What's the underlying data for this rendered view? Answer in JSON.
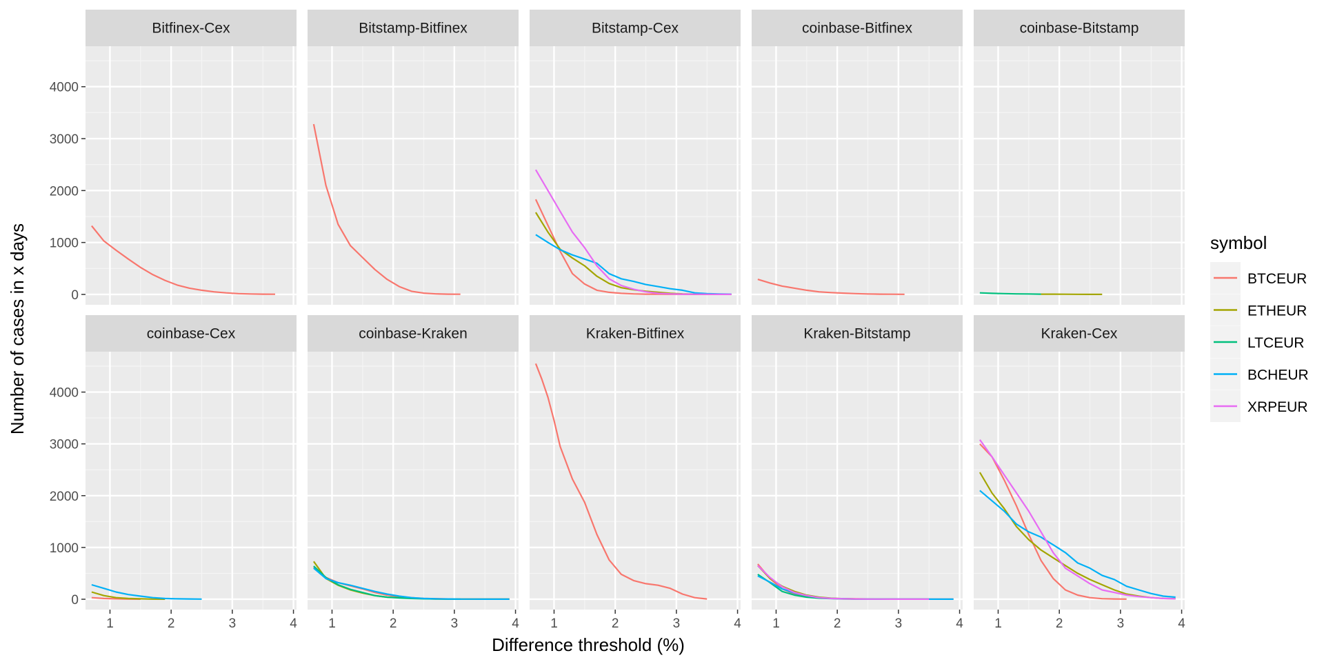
{
  "chart_data": {
    "type": "line",
    "xlabel": "Difference threshold (%)",
    "ylabel": "Number of cases in x days",
    "xlim": [
      0.6,
      4.05
    ],
    "ylim": [
      -200,
      4780
    ],
    "x_ticks": [
      1,
      2,
      3,
      4
    ],
    "y_ticks": [
      0,
      1000,
      2000,
      3000,
      4000
    ],
    "grid": true,
    "legend": {
      "title": "symbol",
      "position": "right",
      "entries": [
        {
          "label": "BTCEUR",
          "color": "#F8766D"
        },
        {
          "label": "ETHEUR",
          "color": "#A3A500"
        },
        {
          "label": "LTCEUR",
          "color": "#00BF7D"
        },
        {
          "label": "BCHEUR",
          "color": "#00B0F6"
        },
        {
          "label": "XRPEUR",
          "color": "#E76BF3"
        }
      ]
    },
    "panels": [
      {
        "title": "Bitfinex-Cex",
        "series": [
          {
            "name": "BTCEUR",
            "x": [
              0.7,
              0.9,
              1.1,
              1.3,
              1.5,
              1.7,
              1.9,
              2.1,
              2.3,
              2.5,
              2.7,
              2.9,
              3.1,
              3.3,
              3.5,
              3.7
            ],
            "y": [
              1320,
              1030,
              850,
              680,
              520,
              380,
              270,
              180,
              120,
              80,
              50,
              30,
              15,
              8,
              5,
              3
            ]
          }
        ]
      },
      {
        "title": "Bitstamp-Bitfinex",
        "series": [
          {
            "name": "BTCEUR",
            "x": [
              0.7,
              0.9,
              1.1,
              1.3,
              1.5,
              1.7,
              1.9,
              2.1,
              2.3,
              2.5,
              2.7,
              2.9,
              3.1
            ],
            "y": [
              3280,
              2100,
              1350,
              940,
              710,
              480,
              290,
              150,
              60,
              25,
              10,
              5,
              3
            ]
          }
        ]
      },
      {
        "title": "Bitstamp-Cex",
        "series": [
          {
            "name": "BTCEUR",
            "x": [
              0.7,
              0.9,
              1.1,
              1.3,
              1.5,
              1.7,
              1.9,
              2.1,
              2.3,
              2.5,
              2.7,
              2.9,
              3.1,
              3.3,
              3.5,
              3.7,
              3.9
            ],
            "y": [
              1830,
              1330,
              830,
              400,
              200,
              80,
              40,
              20,
              10,
              5,
              3,
              2,
              2,
              1,
              1,
              1,
              1
            ]
          },
          {
            "name": "ETHEUR",
            "x": [
              0.7,
              0.9,
              1.1,
              1.3,
              1.5,
              1.7,
              1.9,
              2.1,
              2.3,
              2.5,
              2.7,
              2.9,
              3.1,
              3.3,
              3.5,
              3.7,
              3.9
            ],
            "y": [
              1580,
              1200,
              870,
              700,
              550,
              350,
              210,
              130,
              90,
              60,
              40,
              20,
              10,
              5,
              3,
              2,
              1
            ]
          },
          {
            "name": "BCHEUR",
            "x": [
              0.7,
              0.9,
              1.1,
              1.3,
              1.5,
              1.7,
              1.9,
              2.1,
              2.3,
              2.5,
              2.7,
              2.9,
              3.1,
              3.3,
              3.5,
              3.7,
              3.9
            ],
            "y": [
              1150,
              1000,
              860,
              760,
              680,
              600,
              400,
              300,
              250,
              190,
              150,
              110,
              80,
              30,
              15,
              8,
              5
            ]
          },
          {
            "name": "XRPEUR",
            "x": [
              0.7,
              0.9,
              1.1,
              1.3,
              1.5,
              1.7,
              1.9,
              2.1,
              2.3,
              2.5,
              2.7,
              2.9,
              3.1,
              3.3,
              3.5,
              3.7,
              3.9
            ],
            "y": [
              2400,
              2000,
              1600,
              1200,
              900,
              550,
              300,
              170,
              100,
              50,
              20,
              10,
              5,
              3,
              2,
              1,
              1
            ]
          }
        ]
      },
      {
        "title": "coinbase-Bitfinex",
        "series": [
          {
            "name": "BTCEUR",
            "x": [
              0.7,
              0.9,
              1.1,
              1.3,
              1.5,
              1.7,
              1.9,
              2.1,
              2.3,
              2.5,
              2.7,
              2.9,
              3.1
            ],
            "y": [
              290,
              220,
              160,
              120,
              80,
              50,
              35,
              25,
              15,
              8,
              5,
              3,
              2
            ]
          }
        ]
      },
      {
        "title": "coinbase-Bitstamp",
        "series": [
          {
            "name": "ETHEUR",
            "x": [
              1.7,
              1.9,
              2.1,
              2.3,
              2.5,
              2.7
            ],
            "y": [
              5,
              4,
              3,
              2,
              1,
              1
            ]
          },
          {
            "name": "LTCEUR",
            "x": [
              0.7,
              0.9,
              1.1,
              1.3,
              1.5,
              1.7
            ],
            "y": [
              30,
              20,
              15,
              10,
              8,
              5
            ]
          }
        ]
      },
      {
        "title": "coinbase-Cex",
        "series": [
          {
            "name": "BTCEUR",
            "x": [
              0.7,
              0.9,
              1.1,
              1.3,
              1.5
            ],
            "y": [
              30,
              15,
              8,
              3,
              1
            ]
          },
          {
            "name": "ETHEUR",
            "x": [
              0.7,
              0.9,
              1.1,
              1.3,
              1.5,
              1.7,
              1.9
            ],
            "y": [
              140,
              70,
              30,
              15,
              8,
              3,
              1
            ]
          },
          {
            "name": "BCHEUR",
            "x": [
              0.7,
              0.9,
              1.1,
              1.3,
              1.5,
              1.7,
              1.9,
              2.1,
              2.3,
              2.5
            ],
            "y": [
              280,
              210,
              140,
              90,
              60,
              30,
              15,
              8,
              5,
              3
            ]
          }
        ]
      },
      {
        "title": "coinbase-Kraken",
        "series": [
          {
            "name": "BTCEUR",
            "x": [
              0.7,
              0.9,
              1.1,
              1.3,
              1.5,
              1.7,
              1.9,
              2.1,
              2.3,
              2.5,
              2.7,
              2.9,
              3.1,
              3.3,
              3.5,
              3.7,
              3.9
            ],
            "y": [
              620,
              420,
              320,
              260,
              200,
              130,
              80,
              50,
              30,
              15,
              10,
              5,
              3,
              2,
              1,
              1,
              1
            ]
          },
          {
            "name": "ETHEUR",
            "x": [
              0.7,
              0.9,
              1.1,
              1.3,
              1.5,
              1.7,
              1.9,
              2.1,
              2.3,
              2.5,
              2.7,
              2.9,
              3.1,
              3.3,
              3.5,
              3.7,
              3.9
            ],
            "y": [
              730,
              400,
              270,
              180,
              120,
              70,
              40,
              30,
              20,
              10,
              5,
              3,
              2,
              1,
              1,
              1,
              1
            ]
          },
          {
            "name": "LTCEUR",
            "x": [
              0.7,
              0.9,
              1.1,
              1.3,
              1.5,
              1.7,
              1.9,
              2.1,
              2.3,
              2.5,
              2.7,
              2.9,
              3.1
            ],
            "y": [
              640,
              420,
              280,
              190,
              130,
              70,
              40,
              25,
              15,
              8,
              5,
              3,
              1
            ]
          },
          {
            "name": "BCHEUR",
            "x": [
              0.7,
              0.9,
              1.1,
              1.3,
              1.5,
              1.7,
              1.9,
              2.1,
              2.3,
              2.5,
              2.7,
              2.9,
              3.1,
              3.3,
              3.5,
              3.7,
              3.9
            ],
            "y": [
              600,
              400,
              320,
              270,
              210,
              150,
              100,
              60,
              30,
              15,
              8,
              5,
              3,
              2,
              1,
              1,
              1
            ]
          }
        ]
      },
      {
        "title": "Kraken-Bitfinex",
        "series": [
          {
            "name": "BTCEUR",
            "x": [
              0.7,
              0.8,
              0.9,
              1.0,
              1.1,
              1.3,
              1.5,
              1.7,
              1.9,
              2.1,
              2.3,
              2.5,
              2.7,
              2.9,
              3.1,
              3.3,
              3.5
            ],
            "y": [
              4550,
              4250,
              3900,
              3450,
              2950,
              2320,
              1870,
              1250,
              760,
              480,
              360,
              300,
              270,
              210,
              100,
              30,
              5
            ]
          }
        ]
      },
      {
        "title": "Kraken-Bitstamp",
        "series": [
          {
            "name": "BTCEUR",
            "x": [
              0.7,
              0.9,
              1.1,
              1.3,
              1.5,
              1.7,
              1.9,
              2.1,
              2.3,
              2.5,
              2.7,
              2.9,
              3.1,
              3.3,
              3.5,
              3.7,
              3.9
            ],
            "y": [
              680,
              400,
              200,
              100,
              50,
              25,
              15,
              10,
              8,
              5,
              3,
              2,
              2,
              1,
              1,
              1,
              1
            ]
          },
          {
            "name": "ETHEUR",
            "x": [
              0.7,
              0.9,
              1.1,
              1.3,
              1.5,
              1.7,
              1.9,
              2.1,
              2.3,
              2.5,
              2.7,
              2.9,
              3.1,
              3.3,
              3.5
            ],
            "y": [
              650,
              400,
              250,
              150,
              80,
              40,
              20,
              10,
              5,
              3,
              2,
              1,
              1,
              1,
              1
            ]
          },
          {
            "name": "LTCEUR",
            "x": [
              0.7,
              0.9,
              1.1,
              1.3,
              1.5,
              1.7,
              1.9,
              2.1,
              2.3,
              2.5,
              2.7,
              2.9,
              3.1,
              3.3,
              3.5
            ],
            "y": [
              480,
              320,
              150,
              80,
              40,
              20,
              10,
              5,
              3,
              2,
              1,
              1,
              1,
              1,
              1
            ]
          },
          {
            "name": "BCHEUR",
            "x": [
              0.7,
              0.9,
              1.1,
              1.3,
              1.5,
              1.7,
              1.9,
              2.1,
              2.3,
              2.5,
              2.7,
              2.9,
              3.1,
              3.3,
              3.5,
              3.7,
              3.9
            ],
            "y": [
              450,
              330,
              200,
              120,
              70,
              30,
              15,
              10,
              5,
              3,
              2,
              1,
              1,
              1,
              1,
              1,
              1
            ]
          },
          {
            "name": "XRPEUR",
            "x": [
              0.7,
              0.9,
              1.1,
              1.3,
              1.5,
              1.7,
              1.9,
              2.1,
              2.3,
              2.5,
              2.7,
              2.9,
              3.1,
              3.3,
              3.5
            ],
            "y": [
              650,
              420,
              240,
              130,
              70,
              30,
              15,
              8,
              5,
              3,
              2,
              1,
              1,
              1,
              1
            ]
          }
        ]
      },
      {
        "title": "Kraken-Cex",
        "series": [
          {
            "name": "BTCEUR",
            "x": [
              0.7,
              0.9,
              1.1,
              1.3,
              1.5,
              1.7,
              1.9,
              2.1,
              2.3,
              2.5,
              2.7,
              2.9,
              3.1
            ],
            "y": [
              3000,
              2750,
              2300,
              1800,
              1250,
              750,
              400,
              180,
              80,
              30,
              10,
              5,
              2
            ]
          },
          {
            "name": "ETHEUR",
            "x": [
              0.7,
              0.9,
              1.1,
              1.3,
              1.5,
              1.7,
              1.9,
              2.1,
              2.3,
              2.5,
              2.7,
              2.9,
              3.1,
              3.3,
              3.5,
              3.7,
              3.9
            ],
            "y": [
              2450,
              2050,
              1750,
              1400,
              1150,
              950,
              800,
              650,
              500,
              380,
              280,
              180,
              100,
              60,
              30,
              15,
              10
            ]
          },
          {
            "name": "BCHEUR",
            "x": [
              0.7,
              0.9,
              1.1,
              1.3,
              1.5,
              1.7,
              1.9,
              2.1,
              2.3,
              2.5,
              2.7,
              2.9,
              3.1,
              3.3,
              3.5,
              3.7,
              3.9
            ],
            "y": [
              2100,
              1900,
              1700,
              1450,
              1300,
              1200,
              1050,
              900,
              700,
              600,
              460,
              380,
              250,
              180,
              110,
              60,
              40
            ]
          },
          {
            "name": "XRPEUR",
            "x": [
              0.7,
              0.9,
              1.1,
              1.3,
              1.5,
              1.7,
              1.9,
              2.1,
              2.3,
              2.5,
              2.7,
              2.9,
              3.1,
              3.3,
              3.5,
              3.7,
              3.9
            ],
            "y": [
              3080,
              2750,
              2400,
              2050,
              1700,
              1300,
              900,
              600,
              450,
              300,
              180,
              130,
              80,
              50,
              30,
              15,
              8
            ]
          }
        ]
      }
    ]
  }
}
